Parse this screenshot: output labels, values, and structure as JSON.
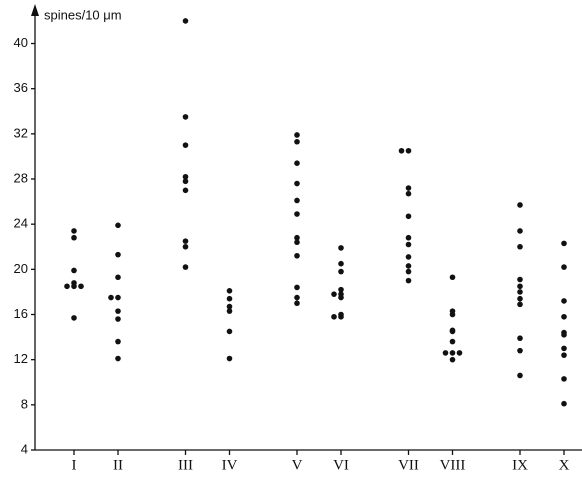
{
  "chart_data": {
    "type": "strip",
    "y_label": "spines/10 μm",
    "categories": [
      "I",
      "II",
      "III",
      "IV",
      "V",
      "VI",
      "VII",
      "VIII",
      "IX",
      "X"
    ],
    "values": [
      [
        23.4,
        22.8,
        19.9,
        18.8,
        18.5,
        18.5,
        18.5,
        15.7
      ],
      [
        23.9,
        21.3,
        19.3,
        17.5,
        17.5,
        16.3,
        15.6,
        13.6,
        12.1
      ],
      [
        42,
        33.5,
        31,
        28.2,
        27.8,
        27,
        22.5,
        22,
        20.2
      ],
      [
        18.1,
        17.4,
        16.7,
        16.3,
        14.5,
        12.1
      ],
      [
        31.9,
        31.3,
        29.4,
        27.6,
        26.1,
        24.9,
        22.8,
        22.4,
        21.2,
        18.4,
        17.5,
        17
      ],
      [
        21.9,
        20.5,
        19.8,
        18.2,
        17.8,
        17.8,
        17.5,
        16,
        15.8,
        15.8
      ],
      [
        30.5,
        30.5,
        27.2,
        26.7,
        24.7,
        22.8,
        22.2,
        21.1,
        20.3,
        19.8,
        19
      ],
      [
        19.3,
        16.3,
        16,
        14.6,
        14.5,
        13.6,
        12.6,
        12.6,
        12.6,
        12
      ],
      [
        25.7,
        23.4,
        22,
        19.1,
        18.5,
        18,
        17.4,
        16.9,
        13.9,
        12.8,
        10.6
      ],
      [
        22.3,
        20.2,
        17.2,
        15.8,
        14.4,
        14.2,
        13,
        12.4,
        10.3,
        8.1
      ]
    ],
    "color": "#111111",
    "ylim": [
      4,
      43.5
    ],
    "yticks": [
      4,
      8,
      12,
      16,
      20,
      24,
      28,
      32,
      36,
      40
    ]
  }
}
